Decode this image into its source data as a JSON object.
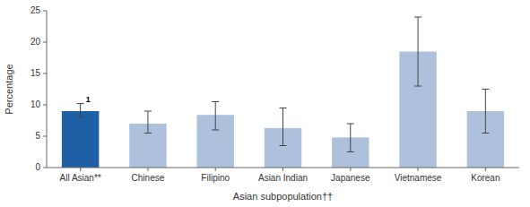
{
  "chart_data": {
    "type": "bar",
    "categories": [
      "All Asian**",
      "Chinese",
      "Filipino",
      "Asian Indian",
      "Japanese",
      "Vietnamese",
      "Korean"
    ],
    "values": [
      9.0,
      7.0,
      8.4,
      6.3,
      4.8,
      18.5,
      9.0
    ],
    "error_low": [
      8.0,
      5.5,
      6.0,
      3.5,
      2.5,
      13.0,
      5.5
    ],
    "error_high": [
      10.2,
      9.0,
      10.5,
      9.5,
      7.0,
      24.0,
      12.5
    ],
    "colors": [
      "#1f5fa6",
      "#adc1dc",
      "#adc1dc",
      "#adc1dc",
      "#adc1dc",
      "#adc1dc",
      "#adc1dc"
    ],
    "ylabel": "Percentage",
    "xlabel": "Asian subpopulation††",
    "ylim": [
      0,
      25
    ],
    "yticks": [
      0,
      5,
      10,
      15,
      20,
      25
    ],
    "annotations": [
      {
        "text": "1",
        "category": "All Asian**"
      }
    ],
    "grid": false
  }
}
